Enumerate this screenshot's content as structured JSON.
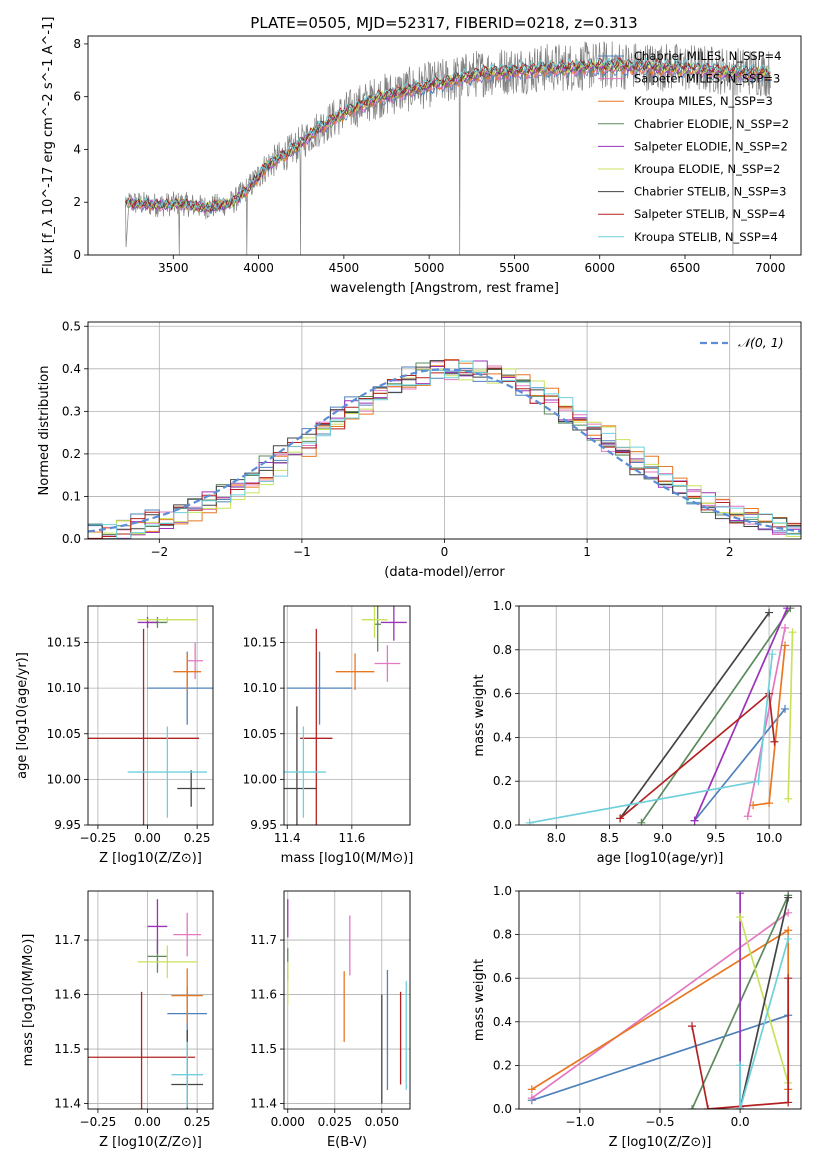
{
  "figure": {
    "title": "PLATE=0505, MJD=52317, FIBERID=0218, z=0.313"
  },
  "colors": {
    "chabrier_miles": "#4f81bd",
    "salpeter_miles": "#e377c2",
    "kroupa_miles": "#e87722",
    "chabrier_elodie": "#5c8a5c",
    "salpeter_elodie": "#9a33b8",
    "kroupa_elodie": "#c8e35a",
    "chabrier_stelib": "#444444",
    "salpeter_stelib": "#b22222",
    "kroupa_stelib": "#6fd0dc",
    "observed": "#808080",
    "normal": "#5b8ed6"
  },
  "chart_data": [
    {
      "id": "spectrum",
      "type": "line",
      "title": "PLATE=0505, MJD=52317, FIBERID=0218, z=0.313",
      "xlabel": "wavelength [Angstrom, rest frame]",
      "ylabel": "Flux [f_λ 10^-17 erg cm^-2 s^-1 A^-1]",
      "xlim": [
        3000,
        7180
      ],
      "ylim": [
        0,
        8.3
      ],
      "xticks": [
        3500,
        4000,
        4500,
        5000,
        5500,
        6000,
        6500,
        7000
      ],
      "yticks": [
        0,
        2,
        4,
        6,
        8
      ],
      "grid": false,
      "legend_position": "top-right",
      "observed": {
        "x_range": [
          3220,
          7000
        ],
        "continuum_knots": [
          [
            3220,
            2.0
          ],
          [
            3400,
            1.9
          ],
          [
            3550,
            1.95
          ],
          [
            3700,
            1.8
          ],
          [
            3850,
            2.0
          ],
          [
            3950,
            2.6
          ],
          [
            4050,
            3.4
          ],
          [
            4200,
            4.0
          ],
          [
            4350,
            4.8
          ],
          [
            4500,
            5.4
          ],
          [
            4700,
            6.0
          ],
          [
            4900,
            6.3
          ],
          [
            5100,
            6.6
          ],
          [
            5300,
            6.9
          ],
          [
            5500,
            7.0
          ],
          [
            5700,
            7.1
          ],
          [
            5900,
            7.15
          ],
          [
            6100,
            7.2
          ],
          [
            6300,
            7.15
          ],
          [
            6500,
            7.1
          ],
          [
            6700,
            7.0
          ],
          [
            7000,
            6.9
          ]
        ]
      },
      "series": [
        {
          "name": "Chabrier MILES, N_SSP=4",
          "color_key": "chabrier_miles"
        },
        {
          "name": "Salpeter MILES, N_SSP=3",
          "color_key": "salpeter_miles"
        },
        {
          "name": "Kroupa MILES, N_SSP=3",
          "color_key": "kroupa_miles"
        },
        {
          "name": "Chabrier ELODIE, N_SSP=2",
          "color_key": "chabrier_elodie"
        },
        {
          "name": "Salpeter ELODIE, N_SSP=2",
          "color_key": "salpeter_elodie"
        },
        {
          "name": "Kroupa ELODIE, N_SSP=2",
          "color_key": "kroupa_elodie"
        },
        {
          "name": "Chabrier STELIB, N_SSP=3",
          "color_key": "chabrier_stelib"
        },
        {
          "name": "Salpeter STELIB, N_SSP=4",
          "color_key": "salpeter_stelib"
        },
        {
          "name": "Kroupa STELIB, N_SSP=4",
          "color_key": "kroupa_stelib"
        }
      ]
    },
    {
      "id": "residuals",
      "type": "line",
      "xlabel": "(data-model)/error",
      "ylabel": "Normed distribution",
      "xlim": [
        -2.5,
        2.5
      ],
      "ylim": [
        0,
        0.51
      ],
      "xticks": [
        -2,
        -1,
        0,
        1,
        2
      ],
      "yticks": [
        0.0,
        0.1,
        0.2,
        0.3,
        0.4,
        0.5
      ],
      "grid": true,
      "legend_position": "top-right",
      "legend": "𝒩(0, 1)",
      "bin_width": 0.1
    },
    {
      "id": "age_vs_Z",
      "type": "scatter",
      "xlabel": "Z [log10(Z/Z⊙)]",
      "ylabel": "age  [log10(age/yr)]",
      "xlim": [
        -0.3,
        0.33
      ],
      "ylim": [
        9.95,
        10.19
      ],
      "xticks": [
        -0.25,
        0.0,
        0.25
      ],
      "xtick_labels": [
        "−0.25",
        "0.00",
        "0.25"
      ],
      "yticks": [
        9.95,
        10.0,
        10.05,
        10.1,
        10.15
      ],
      "grid": true,
      "points": [
        {
          "color_key": "chabrier_miles",
          "x": 0.2,
          "xerr": 0.2,
          "y": 10.1,
          "yerr": 0.04
        },
        {
          "color_key": "salpeter_miles",
          "x": 0.24,
          "xerr": 0.04,
          "y": 10.13,
          "yerr": 0.02
        },
        {
          "color_key": "kroupa_miles",
          "x": 0.2,
          "xerr": 0.07,
          "y": 10.118,
          "yerr": 0.02
        },
        {
          "color_key": "chabrier_elodie",
          "x": 0.05,
          "xerr": 0.05,
          "y": 10.172,
          "yerr": 0.006
        },
        {
          "color_key": "salpeter_elodie",
          "x": 0.0,
          "xerr": 0.05,
          "y": 10.172,
          "yerr": 0.006
        },
        {
          "color_key": "kroupa_elodie",
          "x": 0.1,
          "xerr": 0.15,
          "y": 10.175,
          "yerr": 0.003
        },
        {
          "color_key": "chabrier_stelib",
          "x": 0.22,
          "xerr": 0.07,
          "y": 9.99,
          "yerr": 0.02
        },
        {
          "color_key": "salpeter_stelib",
          "x": -0.02,
          "xerr": 0.28,
          "y": 10.045,
          "yerr": 0.12
        },
        {
          "color_key": "kroupa_stelib",
          "x": 0.1,
          "xerr": 0.2,
          "y": 10.008,
          "yerr": 0.05
        }
      ]
    },
    {
      "id": "age_vs_mass",
      "type": "scatter",
      "xlabel": "mass [log10(M/M⊙)]",
      "xlim": [
        11.39,
        11.78
      ],
      "ylim": [
        9.95,
        10.19
      ],
      "xticks": [
        11.4,
        11.6
      ],
      "yticks": [
        9.95,
        10.0,
        10.05,
        10.1,
        10.15
      ],
      "grid": true,
      "points": [
        {
          "color_key": "chabrier_miles",
          "x": 11.5,
          "xerr": 0.1,
          "y": 10.1,
          "yerr": 0.04
        },
        {
          "color_key": "salpeter_miles",
          "x": 11.71,
          "xerr": 0.04,
          "y": 10.127,
          "yerr": 0.02
        },
        {
          "color_key": "kroupa_miles",
          "x": 11.61,
          "xerr": 0.06,
          "y": 10.118,
          "yerr": 0.02
        },
        {
          "color_key": "chabrier_elodie",
          "x": 11.68,
          "xerr": 0.01,
          "y": 10.17,
          "yerr": 0.03
        },
        {
          "color_key": "salpeter_elodie",
          "x": 11.73,
          "xerr": 0.04,
          "y": 10.172,
          "yerr": 0.02
        },
        {
          "color_key": "kroupa_elodie",
          "x": 11.67,
          "xerr": 0.04,
          "y": 10.175,
          "yerr": 0.02
        },
        {
          "color_key": "chabrier_stelib",
          "x": 11.43,
          "xerr": 0.06,
          "y": 9.99,
          "yerr": 0.09
        },
        {
          "color_key": "salpeter_stelib",
          "x": 11.49,
          "xerr": 0.05,
          "y": 10.045,
          "yerr": 0.12
        },
        {
          "color_key": "kroupa_stelib",
          "x": 11.45,
          "xerr": 0.07,
          "y": 10.008,
          "yerr": 0.05
        }
      ]
    },
    {
      "id": "weight_vs_age",
      "type": "line",
      "xlabel": "age  [log10(age/yr)]",
      "ylabel": "mass weight",
      "xlim": [
        7.65,
        10.3
      ],
      "ylim": [
        0,
        1.0
      ],
      "xticks": [
        8.0,
        8.5,
        9.0,
        9.5,
        10.0
      ],
      "yticks": [
        0.0,
        0.2,
        0.4,
        0.6,
        0.8,
        1.0
      ],
      "grid": true,
      "series": [
        {
          "color_key": "chabrier_miles",
          "points": [
            [
              9.3,
              0.02
            ],
            [
              10.15,
              0.53
            ]
          ]
        },
        {
          "color_key": "salpeter_miles",
          "points": [
            [
              9.8,
              0.04
            ],
            [
              10.15,
              0.9
            ]
          ]
        },
        {
          "color_key": "kroupa_miles",
          "points": [
            [
              9.85,
              0.09
            ],
            [
              10.0,
              0.1
            ],
            [
              10.15,
              0.82
            ]
          ]
        },
        {
          "color_key": "chabrier_elodie",
          "points": [
            [
              8.8,
              0.01
            ],
            [
              10.2,
              0.99
            ]
          ]
        },
        {
          "color_key": "salpeter_elodie",
          "points": [
            [
              9.3,
              0.02
            ],
            [
              10.17,
              0.99
            ]
          ]
        },
        {
          "color_key": "kroupa_elodie",
          "points": [
            [
              10.18,
              0.12
            ],
            [
              10.22,
              0.88
            ]
          ]
        },
        {
          "color_key": "chabrier_stelib",
          "points": [
            [
              8.6,
              0.03
            ],
            [
              10.0,
              0.97
            ]
          ]
        },
        {
          "color_key": "salpeter_stelib",
          "points": [
            [
              8.6,
              0.03
            ],
            [
              10.0,
              0.6
            ],
            [
              10.05,
              0.38
            ]
          ]
        },
        {
          "color_key": "kroupa_stelib",
          "points": [
            [
              7.75,
              0.01
            ],
            [
              9.9,
              0.2
            ],
            [
              10.03,
              0.78
            ]
          ]
        }
      ]
    },
    {
      "id": "mass_vs_Z",
      "type": "scatter",
      "xlabel": "Z [log10(Z/Z⊙)]",
      "ylabel": "mass [log10(M/M⊙)]",
      "xlim": [
        -0.3,
        0.33
      ],
      "ylim": [
        11.39,
        11.79
      ],
      "xticks": [
        -0.25,
        0.0,
        0.25
      ],
      "xtick_labels": [
        "−0.25",
        "0.00",
        "0.25"
      ],
      "yticks": [
        11.4,
        11.5,
        11.6,
        11.7
      ],
      "grid": true,
      "points": [
        {
          "color_key": "chabrier_miles",
          "x": 0.2,
          "xerr": 0.1,
          "y": 11.565,
          "yerr": 0.05
        },
        {
          "color_key": "salpeter_miles",
          "x": 0.2,
          "xerr": 0.07,
          "y": 11.71,
          "yerr": 0.04
        },
        {
          "color_key": "kroupa_miles",
          "x": 0.2,
          "xerr": 0.08,
          "y": 11.598,
          "yerr": 0.05
        },
        {
          "color_key": "chabrier_elodie",
          "x": 0.05,
          "xerr": 0.05,
          "y": 11.67,
          "yerr": 0.03
        },
        {
          "color_key": "salpeter_elodie",
          "x": 0.05,
          "xerr": 0.05,
          "y": 11.725,
          "yerr": 0.05
        },
        {
          "color_key": "kroupa_elodie",
          "x": 0.1,
          "xerr": 0.15,
          "y": 11.66,
          "yerr": 0.03
        },
        {
          "color_key": "chabrier_stelib",
          "x": 0.2,
          "xerr": 0.08,
          "y": 11.435,
          "yerr": 0.1
        },
        {
          "color_key": "salpeter_stelib",
          "x": -0.03,
          "xerr": 0.27,
          "y": 11.485,
          "yerr": 0.12
        },
        {
          "color_key": "kroupa_stelib",
          "x": 0.2,
          "xerr": 0.08,
          "y": 11.453,
          "yerr": 0.06
        }
      ]
    },
    {
      "id": "mass_vs_EBV",
      "type": "scatter",
      "xlabel": "E(B-V)",
      "xlim": [
        -0.002,
        0.065
      ],
      "ylim": [
        11.39,
        11.79
      ],
      "xticks": [
        0.0,
        0.025,
        0.05
      ],
      "xtick_labels": [
        "0.000",
        "0.025",
        "0.050"
      ],
      "yticks": [
        11.4,
        11.5,
        11.6,
        11.7
      ],
      "grid": true,
      "points": [
        {
          "color_key": "chabrier_miles",
          "x": 0.053,
          "y": 11.535,
          "yerr": 0.11
        },
        {
          "color_key": "salpeter_miles",
          "x": 0.033,
          "y": 11.69,
          "yerr": 0.055
        },
        {
          "color_key": "kroupa_miles",
          "x": 0.03,
          "y": 11.578,
          "yerr": 0.065
        },
        {
          "color_key": "chabrier_elodie",
          "x": 0.0,
          "y": 11.655,
          "yerr": 0.03
        },
        {
          "color_key": "salpeter_elodie",
          "x": 0.0,
          "y": 11.74,
          "yerr": 0.035
        },
        {
          "color_key": "kroupa_elodie",
          "x": 0.0,
          "y": 11.62,
          "yerr": 0.04
        },
        {
          "color_key": "chabrier_stelib",
          "x": 0.05,
          "y": 11.5,
          "yerr": 0.1
        },
        {
          "color_key": "salpeter_stelib",
          "x": 0.06,
          "y": 11.52,
          "yerr": 0.085
        },
        {
          "color_key": "kroupa_stelib",
          "x": 0.063,
          "y": 11.525,
          "yerr": 0.1
        }
      ]
    },
    {
      "id": "weight_vs_Z",
      "type": "line",
      "xlabel": "Z [log10(Z/Z⊙)]",
      "ylabel": "mass weight",
      "xlim": [
        -1.38,
        0.38
      ],
      "ylim": [
        0,
        1.0
      ],
      "xticks": [
        -1.0,
        -0.5,
        0.0
      ],
      "xtick_labels": [
        "−1.0",
        "−0.5",
        "0.0"
      ],
      "yticks": [
        0.0,
        0.2,
        0.4,
        0.6,
        0.8,
        1.0
      ],
      "grid": true,
      "series": [
        {
          "color_key": "chabrier_miles",
          "points": [
            [
              -1.3,
              0.04
            ],
            [
              0.3,
              0.43
            ]
          ]
        },
        {
          "color_key": "salpeter_miles",
          "points": [
            [
              -1.3,
              0.05
            ],
            [
              0.3,
              0.9
            ]
          ]
        },
        {
          "color_key": "kroupa_miles",
          "points": [
            [
              -1.3,
              0.09
            ],
            [
              0.3,
              0.82
            ],
            [
              0.3,
              0.09
            ]
          ]
        },
        {
          "color_key": "chabrier_elodie",
          "points": [
            [
              -0.3,
              0.0
            ],
            [
              0.3,
              0.98
            ]
          ]
        },
        {
          "color_key": "salpeter_elodie",
          "points": [
            [
              0.0,
              0.99
            ],
            [
              0.0,
              0.01
            ]
          ]
        },
        {
          "color_key": "kroupa_elodie",
          "points": [
            [
              0.0,
              0.88
            ],
            [
              0.3,
              0.12
            ]
          ]
        },
        {
          "color_key": "chabrier_stelib",
          "points": [
            [
              0.0,
              0.0
            ],
            [
              0.3,
              0.97
            ]
          ]
        },
        {
          "color_key": "salpeter_stelib",
          "points": [
            [
              -0.3,
              0.38
            ],
            [
              -0.2,
              0.0
            ],
            [
              0.3,
              0.03
            ],
            [
              0.3,
              0.6
            ]
          ]
        },
        {
          "color_key": "kroupa_stelib",
          "points": [
            [
              0.0,
              0.2
            ],
            [
              0.0,
              0.0
            ],
            [
              0.3,
              0.78
            ]
          ]
        }
      ]
    }
  ]
}
